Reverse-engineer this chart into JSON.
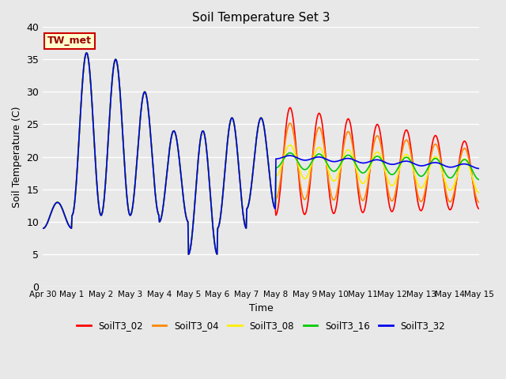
{
  "title": "Soil Temperature Set 3",
  "xlabel": "Time",
  "ylabel": "Soil Temperature (C)",
  "ylim": [
    0,
    40
  ],
  "annotation": "TW_met",
  "series_colors": {
    "SoilT3_02": "#ff0000",
    "SoilT3_04": "#ff8800",
    "SoilT3_08": "#ffee00",
    "SoilT3_16": "#00cc00",
    "SoilT3_32": "#0000ee"
  },
  "xtick_labels": [
    "Apr 30",
    "May 1",
    "May 2",
    "May 3",
    "May 4",
    "May 5",
    "May 6",
    "May 7",
    "May 8",
    "May 9",
    "May 10",
    "May 11",
    "May 12",
    "May 13",
    "May 14",
    "May 15"
  ],
  "num_days": 15,
  "pts_per_day": 48,
  "bg_color": "#e8e8e8",
  "grid_color": "white",
  "figsize": [
    6.4,
    4.8
  ],
  "dpi": 100
}
